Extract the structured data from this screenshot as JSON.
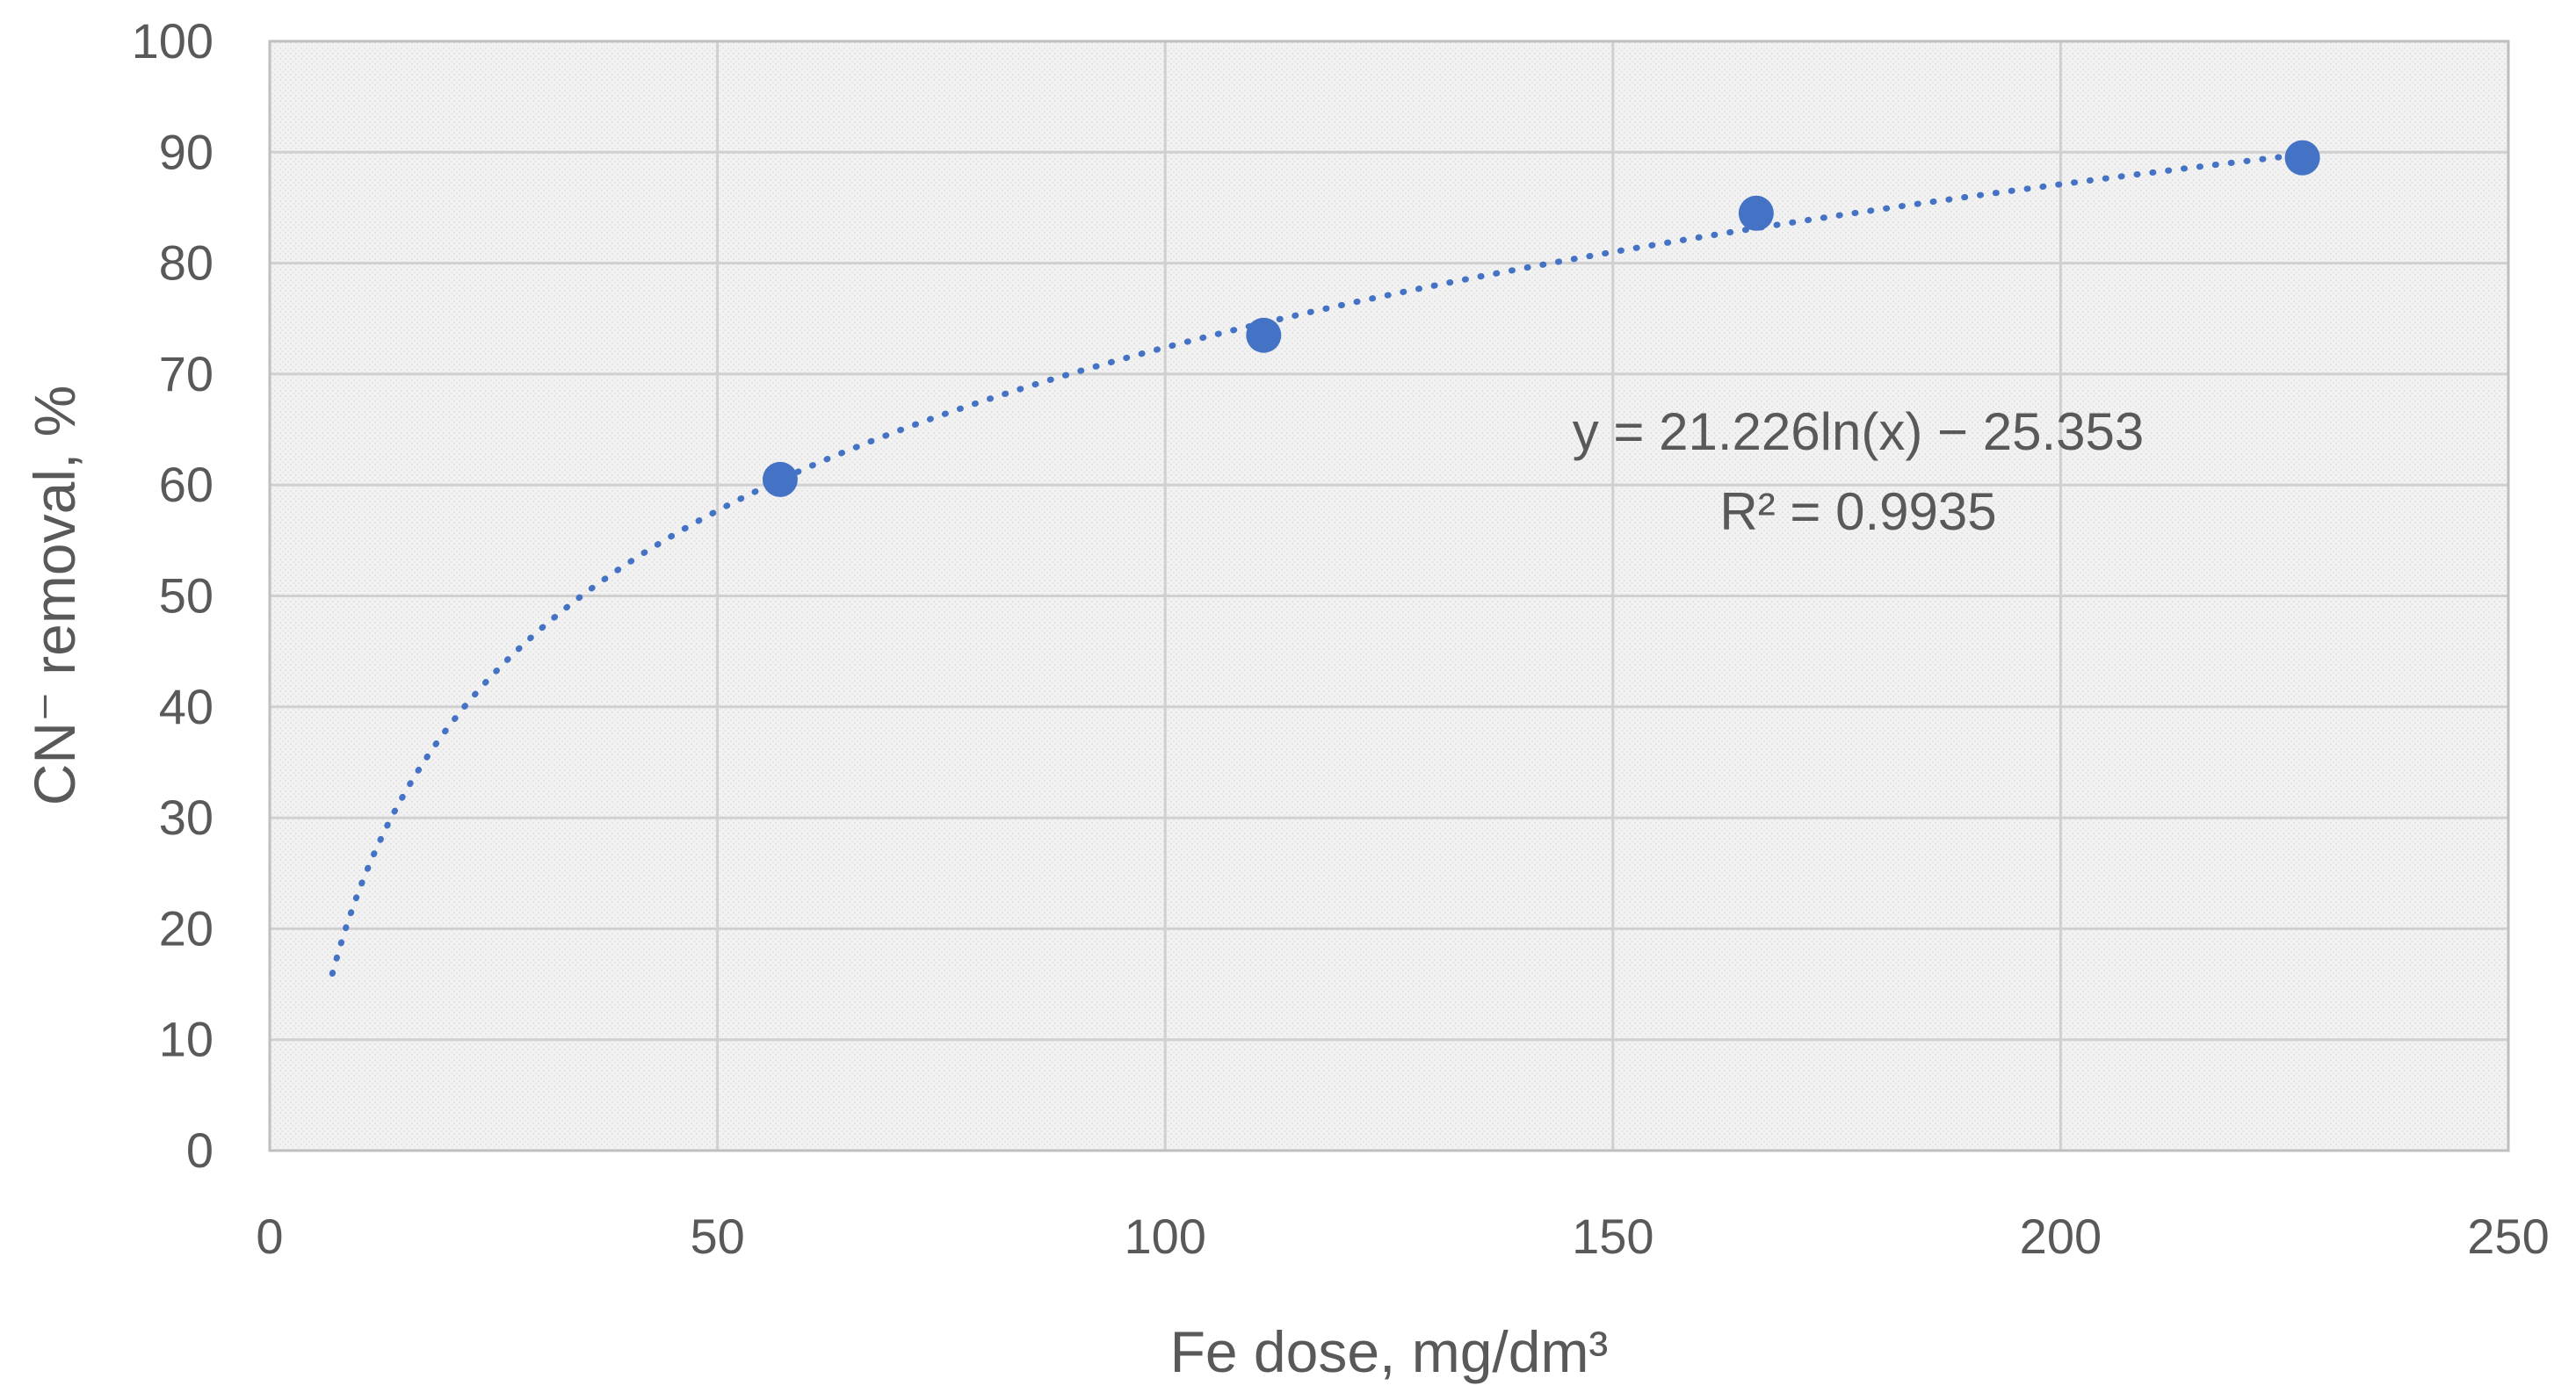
{
  "chart_data": {
    "type": "scatter",
    "xlabel": "Fe dose, mg/dm³",
    "ylabel": "CN⁻ removal, %",
    "xlim": [
      0,
      250
    ],
    "ylim": [
      0,
      100
    ],
    "xticks": [
      0,
      50,
      100,
      150,
      200,
      250
    ],
    "yticks": [
      0,
      10,
      20,
      30,
      40,
      50,
      60,
      70,
      80,
      90,
      100
    ],
    "grid": true,
    "legend": "none",
    "series": [
      {
        "x": [
          57,
          111,
          166,
          227
        ],
        "y": [
          60.5,
          73.5,
          84.5,
          89.5
        ],
        "color": "#4472C4",
        "marker": "circle"
      }
    ],
    "trendline": {
      "type": "logarithmic",
      "a": 21.226,
      "b": -25.353,
      "x_range": [
        7,
        227
      ],
      "color": "#4472C4",
      "style": "dotted",
      "equation_label": "y = 21.226ln(x) − 25.353",
      "r2_label": "R² = 0.9935"
    }
  }
}
